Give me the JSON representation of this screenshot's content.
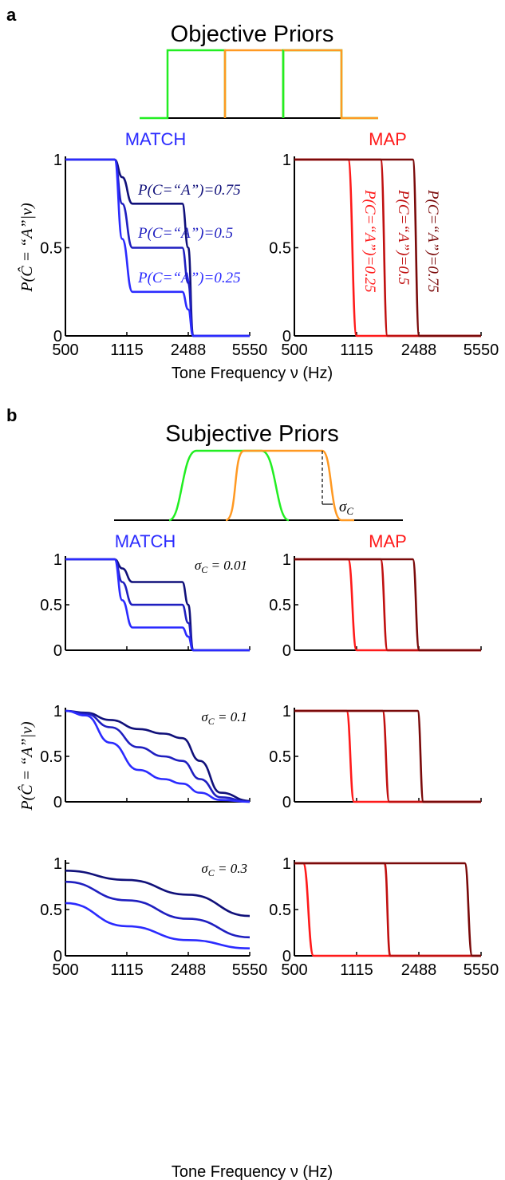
{
  "panel_labels": [
    "a",
    "b"
  ],
  "colors": {
    "match_light": "#2b2bff",
    "match_mid": "#1f1fc0",
    "match_dark": "#10107a",
    "map_light": "#ff1a1a",
    "map_mid": "#c01010",
    "map_dark": "#7a0a0a",
    "prior_green": "#22ee22",
    "prior_orange": "#ff9922",
    "axis": "#000000"
  },
  "section_a": {
    "title": "Objective Priors",
    "match_title": "MATCH",
    "map_title": "MAP",
    "match_curve_labels": [
      "P(C=“A”)=0.75",
      "P(C=“A”)=0.5",
      "P(C=“A”)=0.25"
    ],
    "map_curve_labels": [
      "P(C=“A”)=0.25",
      "P(C=“A”)=0.5",
      "P(C=“A”)=0.75"
    ]
  },
  "section_b": {
    "title": "Subjective Priors",
    "match_title": "MATCH",
    "map_title": "MAP",
    "sigma_symbol": "σ",
    "sigma_sub": "C",
    "sigma_labels": [
      "σ_C = 0.01",
      "σ_C = 0.1",
      "σ_C = 0.3"
    ],
    "sigma_values": [
      "0.01",
      "0.1",
      "0.3"
    ]
  },
  "axes": {
    "xlabel": "Tone Frequency ν (Hz)",
    "ylabel": "P(Ĉ = “A”|ν)",
    "xticks": [
      "500",
      "1115",
      "2488",
      "5550"
    ],
    "yticks": [
      "0",
      "0.5",
      "1"
    ]
  },
  "chart_data": [
    {
      "type": "line",
      "title": "MATCH",
      "xscale": "log",
      "xlim": [
        500,
        5550
      ],
      "ylim": [
        0,
        1
      ],
      "series": [
        {
          "name": "P(C=“A”)=0.75",
          "x": [
            500,
            950,
            1050,
            1200,
            2300,
            2488,
            2650,
            5550
          ],
          "y": [
            1,
            1,
            0.9,
            0.75,
            0.75,
            0.5,
            0.0,
            0.0
          ]
        },
        {
          "name": "P(C=“A”)=0.5",
          "x": [
            500,
            950,
            1050,
            1200,
            2300,
            2488,
            2650,
            5550
          ],
          "y": [
            1,
            1,
            0.75,
            0.5,
            0.5,
            0.3,
            0.0,
            0.0
          ]
        },
        {
          "name": "P(C=“A”)=0.25",
          "x": [
            500,
            950,
            1050,
            1200,
            2300,
            2488,
            2650,
            5550
          ],
          "y": [
            1,
            1,
            0.55,
            0.25,
            0.25,
            0.15,
            0.0,
            0.0
          ]
        }
      ]
    },
    {
      "type": "line",
      "title": "MAP",
      "xscale": "log",
      "xlim": [
        500,
        5550
      ],
      "ylim": [
        0,
        1
      ],
      "series": [
        {
          "name": "P(C=“A”)=0.25",
          "x": [
            500,
            1000,
            1115,
            5550
          ],
          "y": [
            1,
            1,
            0,
            0
          ]
        },
        {
          "name": "P(C=“A”)=0.5",
          "x": [
            500,
            1520,
            1660,
            5550
          ],
          "y": [
            1,
            1,
            0,
            0
          ]
        },
        {
          "name": "P(C=“A”)=0.75",
          "x": [
            500,
            2300,
            2500,
            5550
          ],
          "y": [
            1,
            1,
            0,
            0
          ]
        }
      ]
    },
    {
      "type": "line",
      "title": "MATCH σ_C = 0.01",
      "xscale": "log",
      "xlim": [
        500,
        5550
      ],
      "ylim": [
        0,
        1
      ],
      "series": [
        {
          "x": [
            500,
            950,
            1050,
            1200,
            2300,
            2488,
            2650,
            5550
          ],
          "y": [
            1,
            1,
            0.9,
            0.75,
            0.75,
            0.5,
            0.0,
            0.0
          ]
        },
        {
          "x": [
            500,
            950,
            1050,
            1200,
            2300,
            2488,
            2650,
            5550
          ],
          "y": [
            1,
            1,
            0.75,
            0.5,
            0.5,
            0.3,
            0.0,
            0.0
          ]
        },
        {
          "x": [
            500,
            950,
            1050,
            1200,
            2300,
            2488,
            2650,
            5550
          ],
          "y": [
            1,
            1,
            0.55,
            0.25,
            0.25,
            0.15,
            0.0,
            0.0
          ]
        }
      ]
    },
    {
      "type": "line",
      "title": "MAP σ_C = 0.01",
      "xscale": "log",
      "xlim": [
        500,
        5550
      ],
      "ylim": [
        0,
        1
      ],
      "series": [
        {
          "x": [
            500,
            1000,
            1115,
            5550
          ],
          "y": [
            1,
            1,
            0,
            0
          ]
        },
        {
          "x": [
            500,
            1520,
            1660,
            5550
          ],
          "y": [
            1,
            1,
            0,
            0
          ]
        },
        {
          "x": [
            500,
            2300,
            2500,
            5550
          ],
          "y": [
            1,
            1,
            0,
            0
          ]
        }
      ]
    },
    {
      "type": "line",
      "title": "MATCH σ_C = 0.1",
      "xscale": "log",
      "xlim": [
        500,
        5550
      ],
      "ylim": [
        0,
        1
      ],
      "series": [
        {
          "x": [
            500,
            650,
            900,
            1300,
            1800,
            2300,
            2900,
            3800,
            5550
          ],
          "y": [
            1,
            0.98,
            0.9,
            0.8,
            0.75,
            0.7,
            0.45,
            0.1,
            0.01
          ]
        },
        {
          "x": [
            500,
            650,
            900,
            1300,
            1800,
            2300,
            2900,
            3800,
            5550
          ],
          "y": [
            1,
            0.97,
            0.82,
            0.6,
            0.5,
            0.45,
            0.25,
            0.05,
            0.0
          ]
        },
        {
          "x": [
            500,
            650,
            900,
            1300,
            1800,
            2300,
            2900,
            3800,
            5550
          ],
          "y": [
            1,
            0.95,
            0.65,
            0.35,
            0.25,
            0.2,
            0.1,
            0.02,
            0.0
          ]
        }
      ]
    },
    {
      "type": "line",
      "title": "MAP σ_C = 0.1",
      "xscale": "log",
      "xlim": [
        500,
        5550
      ],
      "ylim": [
        0,
        1
      ],
      "series": [
        {
          "x": [
            500,
            980,
            1080,
            5550
          ],
          "y": [
            1,
            1,
            0,
            0
          ]
        },
        {
          "x": [
            500,
            1560,
            1700,
            5550
          ],
          "y": [
            1,
            1,
            0,
            0
          ]
        },
        {
          "x": [
            500,
            2450,
            2640,
            5550
          ],
          "y": [
            1,
            1,
            0,
            0
          ]
        }
      ]
    },
    {
      "type": "line",
      "title": "MATCH σ_C = 0.3",
      "xscale": "log",
      "xlim": [
        500,
        5550
      ],
      "ylim": [
        0,
        1
      ],
      "series": [
        {
          "x": [
            500,
            1115,
            2488,
            5550
          ],
          "y": [
            0.92,
            0.82,
            0.66,
            0.43
          ]
        },
        {
          "x": [
            500,
            1115,
            2488,
            5550
          ],
          "y": [
            0.8,
            0.6,
            0.4,
            0.2
          ]
        },
        {
          "x": [
            500,
            1115,
            2488,
            5550
          ],
          "y": [
            0.57,
            0.32,
            0.17,
            0.08
          ]
        }
      ]
    },
    {
      "type": "line",
      "title": "MAP σ_C = 0.3",
      "xscale": "log",
      "xlim": [
        500,
        5550
      ],
      "ylim": [
        0,
        1
      ],
      "series": [
        {
          "x": [
            500,
            560,
            640,
            5550
          ],
          "y": [
            1,
            1,
            0,
            0
          ]
        },
        {
          "x": [
            500,
            1600,
            1720,
            5550
          ],
          "y": [
            1,
            1,
            0,
            0
          ]
        },
        {
          "x": [
            500,
            4500,
            4950,
            5550
          ],
          "y": [
            1,
            1,
            0,
            0
          ]
        }
      ]
    }
  ]
}
